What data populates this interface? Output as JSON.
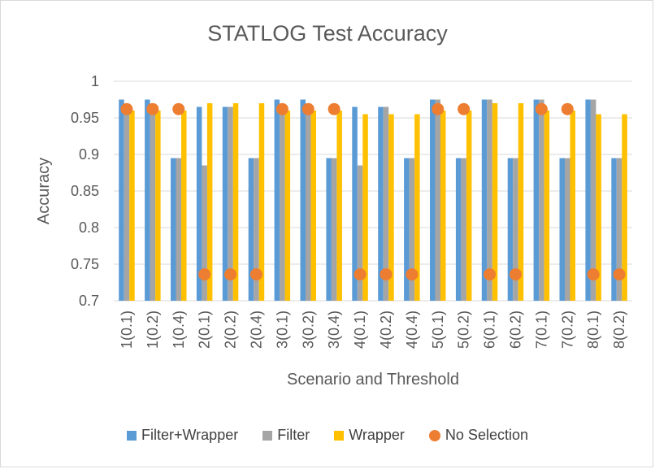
{
  "chart_data": {
    "type": "bar",
    "title": "STATLOG Test Accuracy",
    "xlabel": "Scenario and Threshold",
    "ylabel": "Accuracy",
    "ylim": [
      0.7,
      1.0
    ],
    "yticks": [
      "0.7",
      "0.75",
      "0.8",
      "0.85",
      "0.9",
      "0.95",
      "1"
    ],
    "grid": true,
    "legend_position": "bottom",
    "categories": [
      "1(0.1)",
      "1(0.2)",
      "1(0.4)",
      "2(0.1)",
      "2(0.2)",
      "2(0.4)",
      "3(0.1)",
      "3(0.2)",
      "3(0.4)",
      "4(0.1)",
      "4(0.2)",
      "4(0.4)",
      "5(0.1)",
      "5(0.2)",
      "6(0.1)",
      "6(0.2)",
      "7(0.1)",
      "7(0.2)",
      "8(0.1)",
      "8(0.2)"
    ],
    "series": [
      {
        "name": "Filter+Wrapper",
        "kind": "bar",
        "color": "#5b9bd5",
        "values": [
          0.975,
          0.975,
          0.895,
          0.965,
          0.965,
          0.895,
          0.975,
          0.975,
          0.895,
          0.965,
          0.965,
          0.895,
          0.975,
          0.895,
          0.975,
          0.895,
          0.975,
          0.895,
          0.975,
          0.895
        ]
      },
      {
        "name": "Filter",
        "kind": "bar",
        "color": "#a5a5a5",
        "values": [
          0.965,
          0.965,
          0.895,
          0.885,
          0.965,
          0.895,
          0.965,
          0.965,
          0.895,
          0.885,
          0.965,
          0.895,
          0.975,
          0.895,
          0.975,
          0.895,
          0.975,
          0.895,
          0.975,
          0.895
        ]
      },
      {
        "name": "Wrapper",
        "kind": "bar",
        "color": "#ffc000",
        "values": [
          0.96,
          0.96,
          0.96,
          0.97,
          0.97,
          0.97,
          0.96,
          0.96,
          0.96,
          0.955,
          0.955,
          0.955,
          0.96,
          0.96,
          0.97,
          0.97,
          0.96,
          0.96,
          0.955,
          0.955
        ]
      },
      {
        "name": "No Selection",
        "kind": "marker",
        "color": "#ed7d31",
        "values": [
          0.962,
          0.962,
          0.962,
          0.736,
          0.736,
          0.736,
          0.962,
          0.962,
          0.962,
          0.736,
          0.736,
          0.736,
          0.962,
          0.962,
          0.736,
          0.736,
          0.962,
          0.962,
          0.736,
          0.736
        ]
      }
    ]
  }
}
